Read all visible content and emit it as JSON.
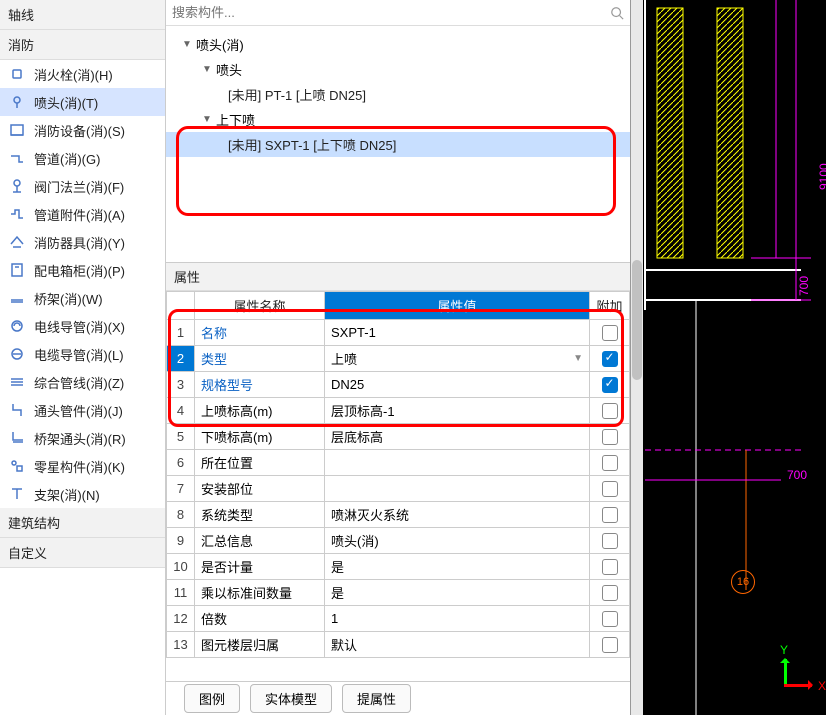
{
  "sidebar": {
    "section_a": "轴线",
    "section_b": "消防",
    "section_c": "建筑结构",
    "section_d": "自定义",
    "items": [
      {
        "label": "消火栓(消)(H)",
        "icon": "hydrant"
      },
      {
        "label": "喷头(消)(T)",
        "icon": "sprinkler",
        "selected": true
      },
      {
        "label": "消防设备(消)(S)",
        "icon": "equipment"
      },
      {
        "label": "管道(消)(G)",
        "icon": "pipe"
      },
      {
        "label": "阀门法兰(消)(F)",
        "icon": "valve"
      },
      {
        "label": "管道附件(消)(A)",
        "icon": "pipe-acc"
      },
      {
        "label": "消防器具(消)(Y)",
        "icon": "fixture"
      },
      {
        "label": "配电箱柜(消)(P)",
        "icon": "panel"
      },
      {
        "label": "桥架(消)(W)",
        "icon": "tray"
      },
      {
        "label": "电线导管(消)(X)",
        "icon": "conduit1"
      },
      {
        "label": "电缆导管(消)(L)",
        "icon": "conduit2"
      },
      {
        "label": "综合管线(消)(Z)",
        "icon": "combo"
      },
      {
        "label": "通头管件(消)(J)",
        "icon": "fitting"
      },
      {
        "label": "桥架通头(消)(R)",
        "icon": "tray-fit"
      },
      {
        "label": "零星构件(消)(K)",
        "icon": "misc"
      },
      {
        "label": "支架(消)(N)",
        "icon": "bracket"
      }
    ]
  },
  "tree": {
    "search_placeholder": "搜索构件...",
    "root": "喷头(消)",
    "n1": "喷头",
    "n1_leaf": "[未用] PT-1 [上喷 DN25]",
    "n2": "上下喷",
    "n2_leaf": "[未用] SXPT-1 [上下喷 DN25]"
  },
  "props": {
    "title": "属性",
    "headers": {
      "name": "属性名称",
      "value": "属性值",
      "extra": "附加"
    },
    "rows": [
      {
        "n": "1",
        "name": "名称",
        "value": "SXPT-1",
        "link": true,
        "chk": false
      },
      {
        "n": "2",
        "name": "类型",
        "value": "上喷",
        "link": true,
        "chk": true,
        "dd": true,
        "selrow": true
      },
      {
        "n": "3",
        "name": "规格型号",
        "value": "DN25",
        "link": true,
        "chk": true
      },
      {
        "n": "4",
        "name": "上喷标高(m)",
        "value": "层顶标高-1",
        "link": false,
        "chk": false
      },
      {
        "n": "5",
        "name": "下喷标高(m)",
        "value": "层底标高",
        "link": false,
        "chk": false
      },
      {
        "n": "6",
        "name": "所在位置",
        "value": "",
        "link": false,
        "chk": false
      },
      {
        "n": "7",
        "name": "安装部位",
        "value": "",
        "link": false,
        "chk": false
      },
      {
        "n": "8",
        "name": "系统类型",
        "value": "喷淋灭火系统",
        "link": false,
        "chk": false
      },
      {
        "n": "9",
        "name": "汇总信息",
        "value": "喷头(消)",
        "link": false,
        "chk": false
      },
      {
        "n": "10",
        "name": "是否计量",
        "value": "是",
        "link": false,
        "chk": false
      },
      {
        "n": "11",
        "name": "乘以标准间数量",
        "value": "是",
        "link": false,
        "chk": false
      },
      {
        "n": "12",
        "name": "倍数",
        "value": "1",
        "link": false,
        "chk": false
      },
      {
        "n": "13",
        "name": "图元楼层归属",
        "value": "默认",
        "link": false,
        "chk": false
      }
    ]
  },
  "bottom_tabs": [
    "图例",
    "实体模型",
    "提属性"
  ],
  "canvas": {
    "bg": "#000000",
    "accent_magenta": "#ff00ff",
    "accent_yellow": "#ffff00",
    "accent_white": "#ffffff",
    "accent_orange": "#ff6600",
    "dims": {
      "d1": "9100",
      "d2": "700",
      "d3": "700"
    },
    "node_label": "16",
    "axis_x": "X",
    "axis_y": "Y"
  }
}
